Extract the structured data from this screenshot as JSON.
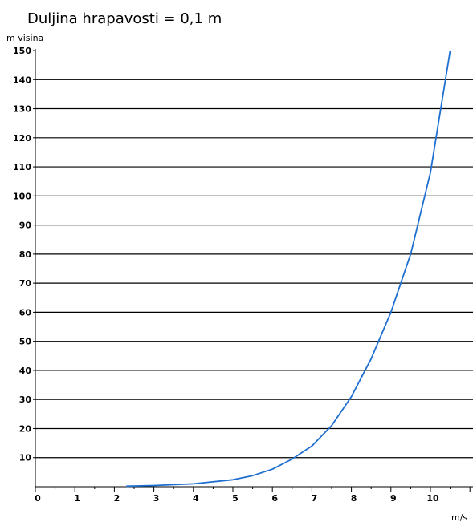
{
  "chart_data": {
    "type": "line",
    "title": "Duljina hrapavosti = 0,1 m",
    "ylabel": "m  visina",
    "xlabel": "m/s",
    "xlim": [
      0,
      11
    ],
    "ylim": [
      0,
      150
    ],
    "x_ticks": [
      "0",
      "1",
      "2",
      "3",
      "4",
      "5",
      "6",
      "7",
      "8",
      "9",
      "10"
    ],
    "y_ticks": [
      "10",
      "20",
      "30",
      "40",
      "50",
      "60",
      "70",
      "80",
      "90",
      "100",
      "110",
      "120",
      "130",
      "140",
      "150"
    ],
    "grid": "horizontal",
    "line_color": "#1f6fd1",
    "series": [
      {
        "x": [
          2.3,
          3.0,
          4.0,
          5.0,
          5.5,
          6.0,
          6.5,
          7.0,
          7.5,
          8.0,
          8.5,
          9.0,
          9.5,
          10.0,
          10.5
        ],
        "y": [
          0.2,
          0.4,
          1.0,
          2.4,
          3.8,
          6.0,
          9.5,
          14.0,
          21.0,
          31.0,
          44.0,
          60.0,
          80.0,
          108.0,
          150.0
        ]
      }
    ]
  }
}
